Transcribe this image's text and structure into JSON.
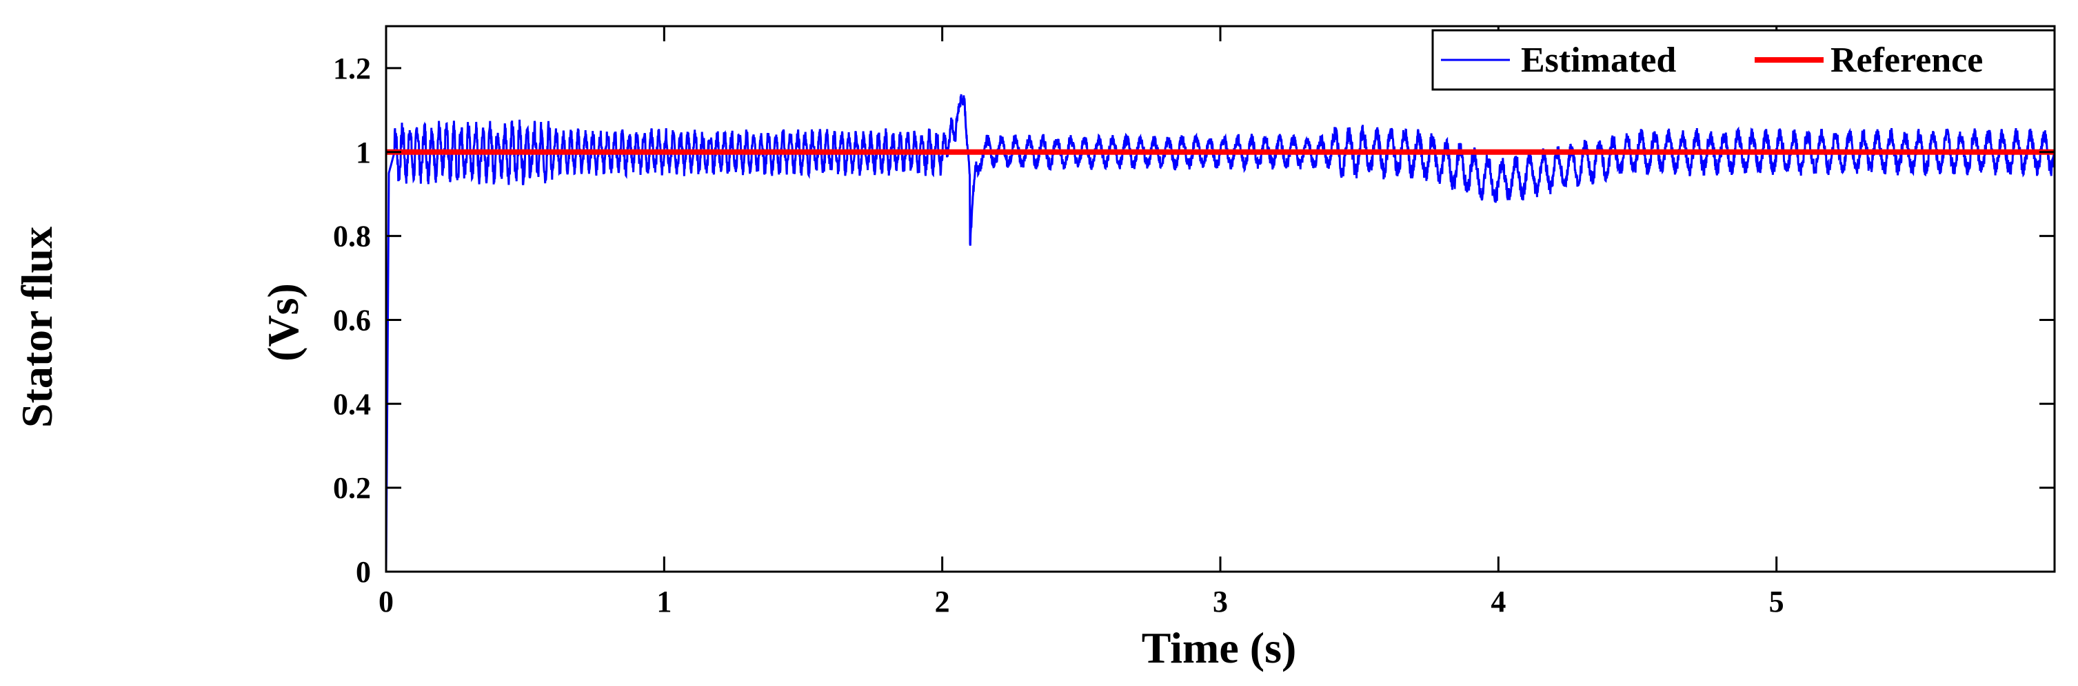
{
  "chart_data": {
    "type": "line",
    "title": "",
    "ylabel_outer": "Stator flux",
    "ylabel": "(Vs)",
    "xlabel": "Time (s)",
    "xlim": [
      0,
      6
    ],
    "ylim": [
      0,
      1.3
    ],
    "xticks": [
      0,
      1,
      2,
      3,
      4,
      5
    ],
    "xtick_labels": [
      "0",
      "1",
      "2",
      "3",
      "4",
      "5"
    ],
    "yticks": [
      0,
      0.2,
      0.4,
      0.6,
      0.8,
      1.0,
      1.2
    ],
    "ytick_labels": [
      "0",
      "0.2",
      "0.4",
      "0.6",
      "0.8",
      "1",
      "1.2"
    ],
    "grid": false,
    "legend_position": "top-right",
    "series": [
      {
        "name": "Estimated",
        "color": "#0000ff",
        "description_points": {
          "x": [
            0,
            0.01,
            0.03,
            0.3,
            0.6,
            1.0,
            2.0,
            2.08,
            2.1,
            2.12,
            2.5,
            3.0,
            3.5,
            3.7,
            4.0,
            4.5,
            5.0,
            5.5,
            6.0
          ],
          "y": [
            0,
            0.95,
            1.0,
            1.0,
            1.0,
            1.0,
            1.0,
            1.1,
            0.87,
            1.0,
            1.0,
            1.0,
            1.0,
            1.0,
            0.93,
            1.0,
            1.0,
            1.0,
            1.0
          ]
        },
        "oscillation_amplitude": [
          {
            "x_from": 0.0,
            "x_to": 0.6,
            "amplitude": 0.055
          },
          {
            "x_from": 0.6,
            "x_to": 2.0,
            "amplitude": 0.04
          },
          {
            "x_from": 2.0,
            "x_to": 3.4,
            "amplitude": 0.03
          },
          {
            "x_from": 3.4,
            "x_to": 4.0,
            "amplitude": 0.045
          },
          {
            "x_from": 4.0,
            "x_to": 6.0,
            "amplitude": 0.04
          }
        ]
      },
      {
        "name": "Reference",
        "color": "#ff0000",
        "x": [
          0,
          6
        ],
        "y": [
          1.0,
          1.0
        ]
      }
    ]
  }
}
